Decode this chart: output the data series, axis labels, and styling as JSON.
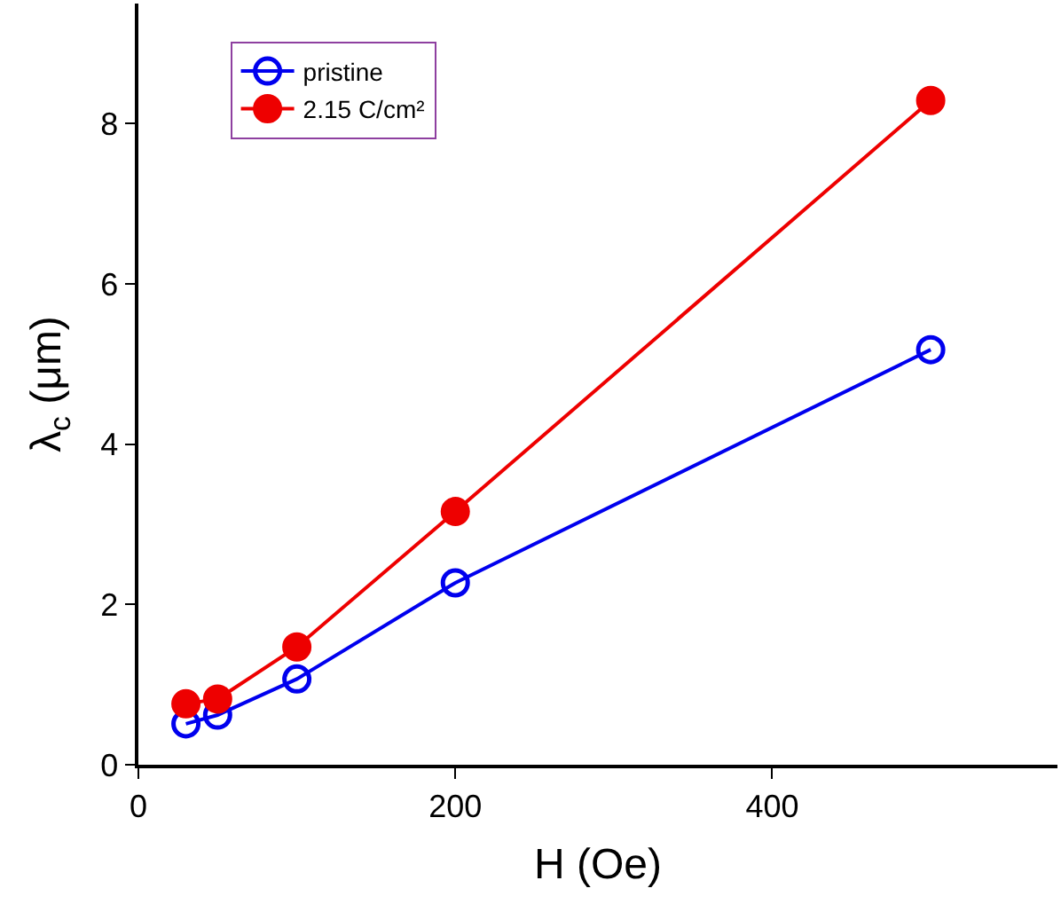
{
  "chart_data": {
    "type": "line",
    "xlabel": "H (Oe)",
    "ylabel": "λ$_{c}$ (μm)",
    "x": [
      30,
      50,
      100,
      200,
      500
    ],
    "series": [
      {
        "name": "pristine",
        "color": "#0000ee",
        "values": [
          0.51,
          0.62,
          1.07,
          2.27,
          5.18
        ]
      },
      {
        "name": "2.15 C/cm²",
        "color": "#ee0000",
        "values": [
          0.76,
          0.82,
          1.47,
          3.16,
          8.29
        ]
      }
    ],
    "xlim": [
      0,
      580
    ],
    "xticks": [
      0,
      200,
      400
    ],
    "ylim": [
      0,
      9.5
    ],
    "yticks": [
      0,
      2,
      4,
      6,
      8
    ],
    "marker": "circle",
    "legend": "top left",
    "line_style": "solid"
  }
}
